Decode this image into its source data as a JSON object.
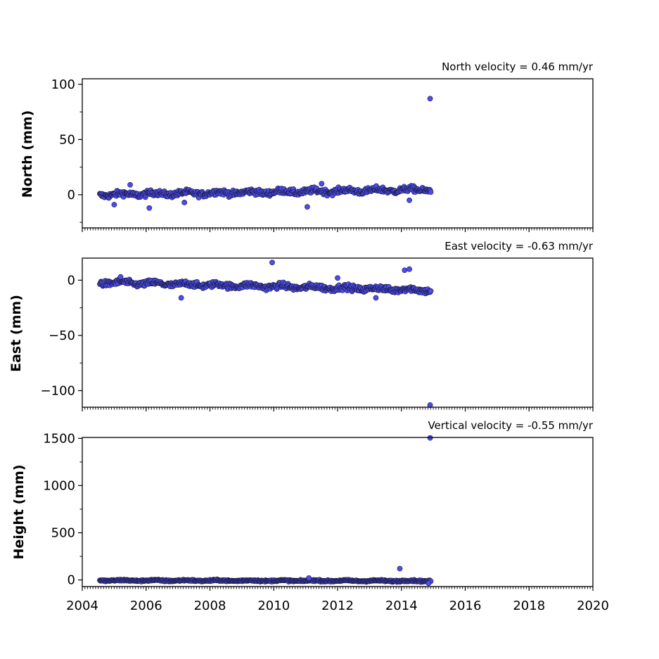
{
  "colors": {
    "marker_fill": "#4c4cf0",
    "marker_edge": "#1a1a3a"
  },
  "chart_data": [
    {
      "type": "scatter",
      "title": "North velocity = 0.46 mm/yr",
      "ylabel": "North (mm)",
      "xlim": [
        2004,
        2020
      ],
      "ylim": [
        -30,
        105
      ],
      "yticks": [
        0,
        50,
        100
      ],
      "ytick_labels": [
        "0",
        "50",
        "100"
      ],
      "trend": {
        "start": 0,
        "end": 4.7
      },
      "noise": 1.8,
      "outliers": [
        {
          "x": 2014.9,
          "y": 87
        },
        {
          "x": 2006.1,
          "y": -12
        },
        {
          "x": 2011.05,
          "y": -11
        },
        {
          "x": 2005.0,
          "y": -9
        },
        {
          "x": 2011.5,
          "y": 10
        },
        {
          "x": 2005.5,
          "y": 9
        },
        {
          "x": 2014.25,
          "y": -5
        },
        {
          "x": 2007.2,
          "y": -7
        }
      ]
    },
    {
      "type": "scatter",
      "title": "East velocity = -0.63 mm/yr",
      "ylabel": "East (mm)",
      "xlim": [
        2004,
        2020
      ],
      "ylim": [
        -115,
        20
      ],
      "yticks": [
        -100,
        -50,
        0
      ],
      "ytick_labels": [
        "−100",
        "−50",
        "0"
      ],
      "trend": {
        "start": -2,
        "end": -9
      },
      "noise": 1.8,
      "outliers": [
        {
          "x": 2014.9,
          "y": -113
        },
        {
          "x": 2009.95,
          "y": 16
        },
        {
          "x": 2014.1,
          "y": 9
        },
        {
          "x": 2014.25,
          "y": 10
        },
        {
          "x": 2007.1,
          "y": -16
        },
        {
          "x": 2013.2,
          "y": -16
        },
        {
          "x": 2012.0,
          "y": 2
        },
        {
          "x": 2005.2,
          "y": 3
        }
      ]
    },
    {
      "type": "scatter",
      "title": "Vertical velocity = -0.55 mm/yr",
      "ylabel": "Height (mm)",
      "xlim": [
        2004,
        2020
      ],
      "ylim": [
        -70,
        1510
      ],
      "yticks": [
        0,
        500,
        1000,
        1500
      ],
      "ytick_labels": [
        "0",
        "500",
        "1000",
        "1500"
      ],
      "trend": {
        "start": -5,
        "end": -10
      },
      "noise": 6,
      "outliers": [
        {
          "x": 2014.9,
          "y": 1505
        },
        {
          "x": 2013.95,
          "y": 120
        },
        {
          "x": 2011.1,
          "y": 20
        },
        {
          "x": 2014.85,
          "y": -35
        }
      ]
    }
  ],
  "x_axis": {
    "ticks": [
      2004,
      2006,
      2008,
      2010,
      2012,
      2014,
      2016,
      2018,
      2020
    ],
    "tick_labels": [
      "2004",
      "2006",
      "2008",
      "2010",
      "2012",
      "2014",
      "2016",
      "2018",
      "2020"
    ],
    "minor_tick_step_years": 0.08333,
    "data_start_year": 2004.55,
    "data_end_year": 2014.92
  }
}
